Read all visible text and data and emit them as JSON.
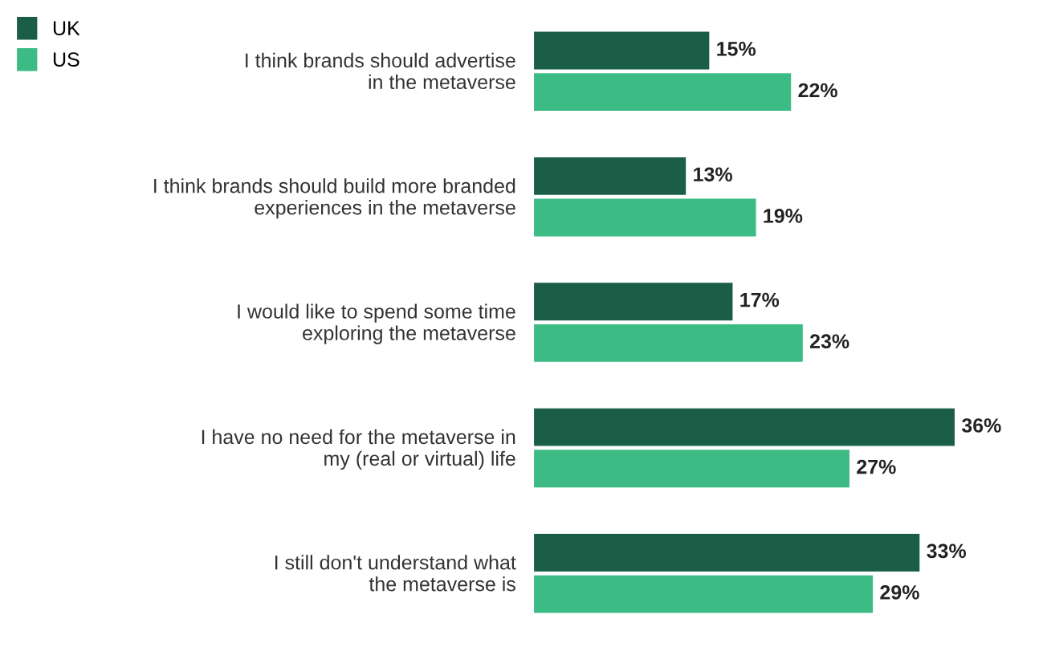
{
  "chart_data": {
    "type": "bar",
    "orientation": "horizontal",
    "categories": [
      "I think brands should advertise\nin the metaverse",
      "I think brands should build more branded\nexperiences in the metaverse",
      "I would like to spend some time\nexploring the metaverse",
      "I have no need for the metaverse in\nmy (real or virtual) life",
      "I still don't understand what\nthe metaverse is"
    ],
    "series": [
      {
        "name": "UK",
        "color": "#1b5e47",
        "values": [
          15,
          13,
          17,
          36,
          33
        ],
        "value_labels": [
          "15%",
          "13%",
          "17%",
          "36%",
          "33%"
        ]
      },
      {
        "name": "US",
        "color": "#3dbb85",
        "values": [
          22,
          19,
          23,
          27,
          29
        ],
        "value_labels": [
          "22%",
          "19%",
          "23%",
          "27%",
          "29%"
        ]
      }
    ],
    "legend": "top left",
    "grid": false,
    "tick_labels": "y"
  }
}
